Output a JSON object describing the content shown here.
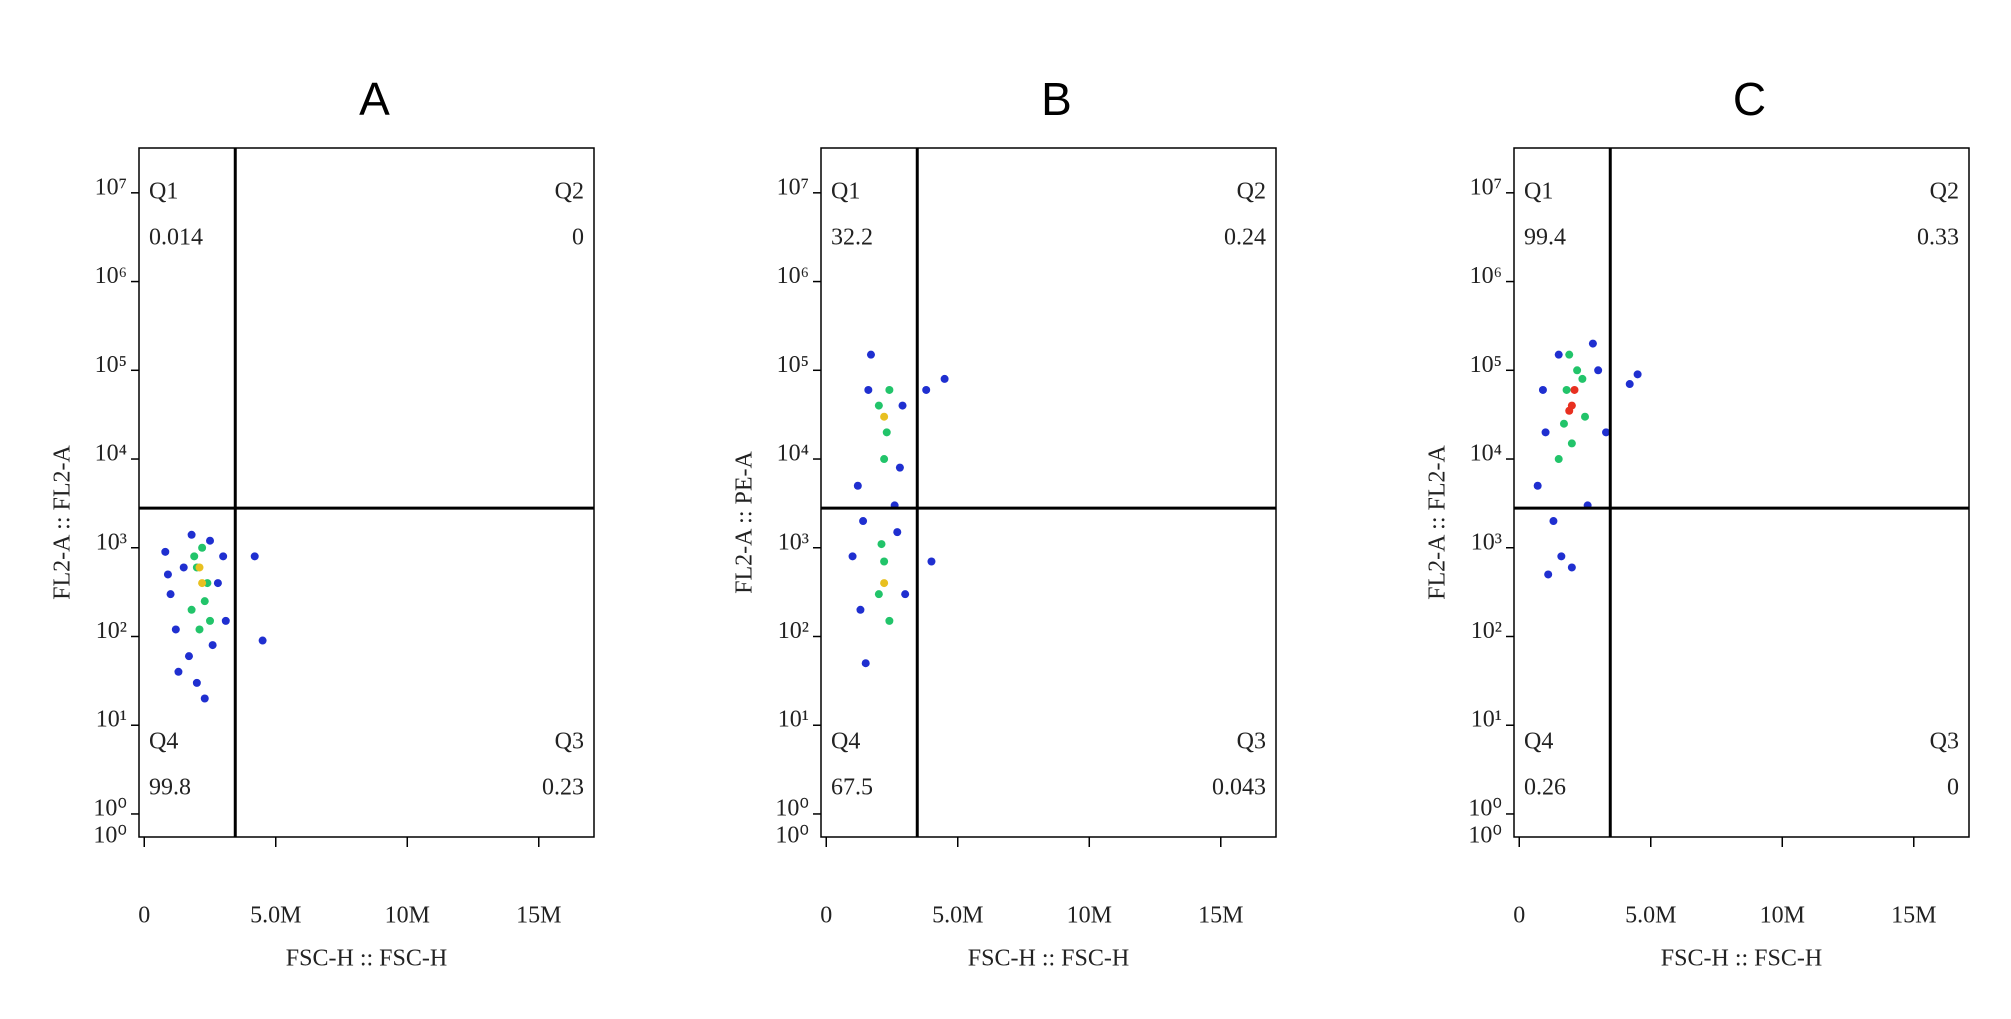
{
  "chart_data": [
    {
      "type": "scatter",
      "title": "A",
      "xlabel": "FSC-H :: FSC-H",
      "ylabel": "FL2-A :: FL2-A",
      "yscale": "log",
      "xlim": [
        -200000,
        17100000
      ],
      "ylim": [
        0.55,
        32000000
      ],
      "xticks": [
        0,
        {
          "value": 5000000,
          "label": "5.0M"
        },
        {
          "value": 10000000,
          "label": "10M"
        },
        {
          "value": 15000000,
          "label": "15M"
        }
      ],
      "yticks": [
        {
          "value": 1,
          "label": "10⁰"
        },
        {
          "value": 10,
          "label": "10¹"
        },
        {
          "value": 100,
          "label": "10²"
        },
        {
          "value": 1000,
          "label": "10³"
        },
        {
          "value": 10000,
          "label": "10⁴"
        },
        {
          "value": 100000,
          "label": "10⁵"
        },
        {
          "value": 1000000,
          "label": "10⁶"
        },
        {
          "value": 10000000,
          "label": "10⁷"
        }
      ],
      "y_floor_label": "10⁰",
      "gates": {
        "x": 3460000,
        "y": 2800
      },
      "quadrants": [
        {
          "name": "Q1",
          "value": 0.014
        },
        {
          "name": "Q2",
          "value": 0
        },
        {
          "name": "Q3",
          "value": 0.23
        },
        {
          "name": "Q4",
          "value": 99.8
        }
      ],
      "series": [
        {
          "color": "#1f2fd0",
          "x": [
            800000,
            1000000,
            1200000,
            1500000,
            1700000,
            2000000,
            2500000,
            2800000,
            3100000,
            1300000,
            1800000,
            2600000,
            3000000,
            900000,
            2300000,
            4200000,
            4500000
          ],
          "values": [
            900,
            300,
            120,
            600,
            60,
            30,
            1200,
            400,
            150,
            40,
            1400,
            80,
            800,
            500,
            20,
            800,
            90
          ]
        },
        {
          "color": "#22c46a",
          "x": [
            1800000,
            2000000,
            2200000,
            2400000,
            2100000,
            2300000,
            1900000,
            2500000
          ],
          "values": [
            200,
            600,
            1000,
            400,
            120,
            250,
            800,
            150
          ]
        },
        {
          "color": "#e8c020",
          "x": [
            2200000,
            2100000
          ],
          "values": [
            400,
            600
          ]
        }
      ]
    },
    {
      "type": "scatter",
      "title": "B",
      "xlabel": "FSC-H :: FSC-H",
      "ylabel": "FL2-A :: PE-A",
      "yscale": "log",
      "xlim": [
        -200000,
        17100000
      ],
      "ylim": [
        0.55,
        32000000
      ],
      "xticks": [
        0,
        {
          "value": 5000000,
          "label": "5.0M"
        },
        {
          "value": 10000000,
          "label": "10M"
        },
        {
          "value": 15000000,
          "label": "15M"
        }
      ],
      "yticks": [
        {
          "value": 1,
          "label": "10⁰"
        },
        {
          "value": 10,
          "label": "10¹"
        },
        {
          "value": 100,
          "label": "10²"
        },
        {
          "value": 1000,
          "label": "10³"
        },
        {
          "value": 10000,
          "label": "10⁴"
        },
        {
          "value": 100000,
          "label": "10⁵"
        },
        {
          "value": 1000000,
          "label": "10⁶"
        },
        {
          "value": 10000000,
          "label": "10⁷"
        }
      ],
      "y_floor_label": "10⁰",
      "gates": {
        "x": 3460000,
        "y": 2800
      },
      "quadrants": [
        {
          "name": "Q1",
          "value": 32.2
        },
        {
          "name": "Q2",
          "value": 0.24
        },
        {
          "name": "Q3",
          "value": 0.043
        },
        {
          "name": "Q4",
          "value": 67.5
        }
      ],
      "series": [
        {
          "color": "#1f2fd0",
          "x": [
            1000000,
            1300000,
            1500000,
            2700000,
            3000000,
            1200000,
            2800000,
            1600000,
            2900000,
            1700000,
            2600000,
            1400000,
            3800000,
            4500000,
            4000000
          ],
          "values": [
            800,
            200,
            50,
            1500,
            300,
            5000,
            8000,
            60000,
            40000,
            150000,
            3000,
            2000,
            60000,
            80000,
            700
          ]
        },
        {
          "color": "#22c46a",
          "x": [
            2000000,
            2200000,
            2400000,
            2100000,
            2300000,
            2000000,
            2200000,
            2400000
          ],
          "values": [
            300,
            700,
            150,
            1100,
            20000,
            40000,
            10000,
            60000
          ]
        },
        {
          "color": "#e8c020",
          "x": [
            2200000,
            2200000
          ],
          "values": [
            400,
            30000
          ]
        }
      ]
    },
    {
      "type": "scatter",
      "title": "C",
      "xlabel": "FSC-H :: FSC-H",
      "ylabel": "FL2-A :: FL2-A",
      "yscale": "log",
      "xlim": [
        -200000,
        17100000
      ],
      "ylim": [
        0.55,
        32000000
      ],
      "xticks": [
        0,
        {
          "value": 5000000,
          "label": "5.0M"
        },
        {
          "value": 10000000,
          "label": "10M"
        },
        {
          "value": 15000000,
          "label": "15M"
        }
      ],
      "yticks": [
        {
          "value": 1,
          "label": "10⁰"
        },
        {
          "value": 10,
          "label": "10¹"
        },
        {
          "value": 100,
          "label": "10²"
        },
        {
          "value": 1000,
          "label": "10³"
        },
        {
          "value": 10000,
          "label": "10⁴"
        },
        {
          "value": 100000,
          "label": "10⁵"
        },
        {
          "value": 1000000,
          "label": "10⁶"
        },
        {
          "value": 10000000,
          "label": "10⁷"
        }
      ],
      "y_floor_label": "10⁰",
      "gates": {
        "x": 3460000,
        "y": 2800
      },
      "quadrants": [
        {
          "name": "Q1",
          "value": 99.4
        },
        {
          "name": "Q2",
          "value": 0.33
        },
        {
          "name": "Q3",
          "value": 0
        },
        {
          "name": "Q4",
          "value": 0.26
        }
      ],
      "series": [
        {
          "color": "#1f2fd0",
          "x": [
            700000,
            1000000,
            1300000,
            1600000,
            3000000,
            3300000,
            900000,
            1500000,
            2800000,
            4200000,
            4500000,
            2000000,
            1100000,
            2600000
          ],
          "values": [
            5000,
            20000,
            2000,
            800,
            100000,
            20000,
            60000,
            150000,
            200000,
            70000,
            90000,
            600,
            500,
            3000
          ]
        },
        {
          "color": "#22c46a",
          "x": [
            1500000,
            1800000,
            2200000,
            2500000,
            1700000,
            2400000,
            2000000,
            1900000
          ],
          "values": [
            10000,
            60000,
            100000,
            30000,
            25000,
            80000,
            15000,
            150000
          ]
        },
        {
          "color": "#e83020",
          "x": [
            2000000,
            2100000,
            1900000
          ],
          "values": [
            40000,
            60000,
            35000
          ]
        }
      ]
    }
  ]
}
